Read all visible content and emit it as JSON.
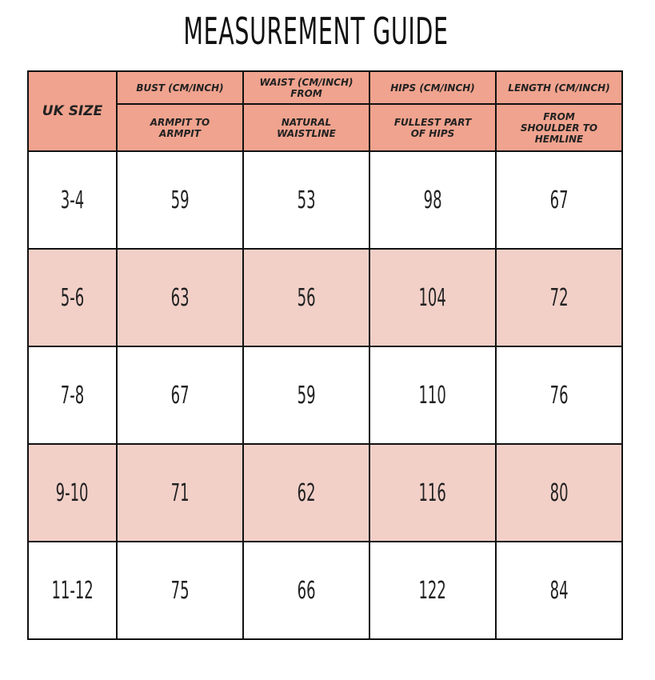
{
  "title": "MEASUREMENT GUIDE",
  "table": {
    "size_header": "UK SIZE",
    "columns": [
      {
        "label": "BUST (CM/INCH)",
        "sub": "ARMPIT TO ARMPIT"
      },
      {
        "label": "WAIST (CM/INCH) FROM",
        "sub": "NATURAL WAISTLINE"
      },
      {
        "label": "HIPS (CM/INCH)",
        "sub": "FULLEST PART OF HIPS"
      },
      {
        "label": "LENGTH (CM/INCH)",
        "sub": "FROM SHOULDER TO HEMLINE"
      }
    ],
    "rows": [
      [
        "3-4",
        59,
        53,
        98,
        67
      ],
      [
        "5-6",
        63,
        56,
        104,
        72
      ],
      [
        "7-8",
        67,
        59,
        110,
        76
      ],
      [
        "9-10",
        71,
        62,
        116,
        80
      ],
      [
        "11-12",
        75,
        66,
        122,
        84
      ]
    ]
  }
}
